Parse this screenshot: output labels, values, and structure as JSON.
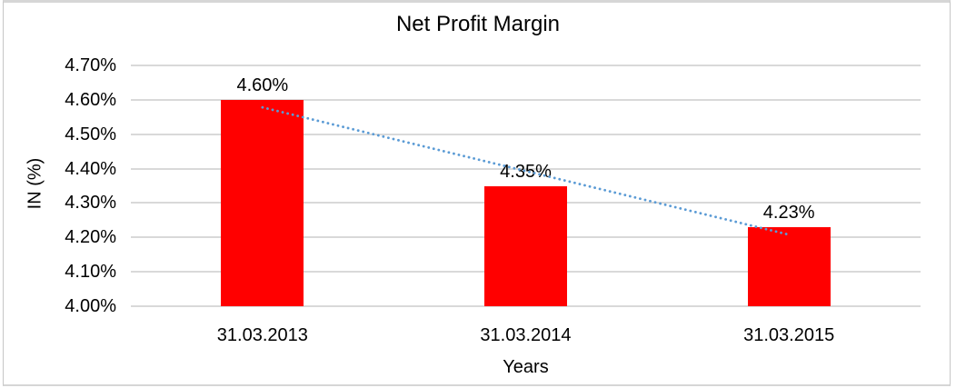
{
  "chart": {
    "title": "Net Profit Margin",
    "xlabel": "Years",
    "ylabel": "IN (%)"
  },
  "chart_data": {
    "type": "bar",
    "title": "Net Profit Margin",
    "categories": [
      "31.03.2013",
      "31.03.2014",
      "31.03.2015"
    ],
    "values": [
      4.6,
      4.35,
      4.23
    ],
    "value_labels": [
      "4.60%",
      "4.35%",
      "4.23%"
    ],
    "xlabel": "Years",
    "ylabel": "IN (%)",
    "ylim": [
      4.0,
      4.7
    ],
    "ytick_step": 0.1,
    "ytick_labels": [
      "4.00%",
      "4.10%",
      "4.20%",
      "4.30%",
      "4.40%",
      "4.50%",
      "4.60%",
      "4.70%"
    ],
    "grid": true,
    "legend": "none",
    "bar_color": "#FF0000",
    "gridline_color": "#D9D9D9",
    "text_color": "#000000",
    "trendline": {
      "type": "linear",
      "style": "dotted",
      "color": "#5B9BD5",
      "start_value": 4.578,
      "end_value": 4.208
    }
  }
}
